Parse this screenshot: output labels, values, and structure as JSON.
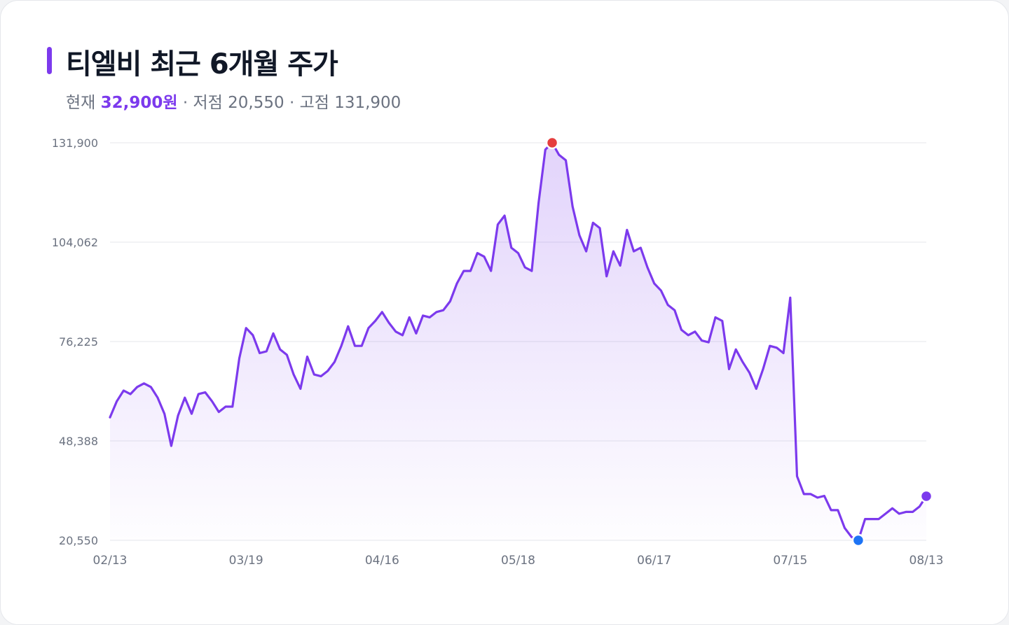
{
  "header": {
    "title": "티엘비 최근 6개월 주가",
    "current_label": "현재",
    "current_value": "32,900원",
    "sep": "·",
    "low_label": "저점",
    "low_value": "20,550",
    "high_label": "고점",
    "high_value": "131,900"
  },
  "colors": {
    "accent": "#7c3aed",
    "high_marker": "#e53e3e",
    "low_marker": "#1d74f5",
    "grid": "#e5e7eb",
    "tick_text": "#6b7280"
  },
  "chart_data": {
    "type": "area",
    "x_ticks": [
      "02/13",
      "03/19",
      "04/16",
      "05/18",
      "06/17",
      "07/15",
      "08/13"
    ],
    "y_ticks": [
      "131,900",
      "104,062",
      "76,225",
      "48,388",
      "20,550"
    ],
    "ylim": [
      20550,
      131900
    ],
    "grid": true,
    "values": [
      55000,
      59500,
      62500,
      61500,
      63500,
      64500,
      63500,
      60500,
      56000,
      47000,
      55500,
      60500,
      56000,
      61500,
      62000,
      59500,
      56500,
      58000,
      58000,
      71500,
      80000,
      78000,
      73000,
      73500,
      78500,
      74000,
      72500,
      67000,
      63000,
      72000,
      67000,
      66500,
      68000,
      70500,
      75000,
      80500,
      75000,
      75000,
      80000,
      82000,
      84500,
      81500,
      79000,
      78000,
      83000,
      78500,
      83500,
      83000,
      84500,
      85000,
      87500,
      92500,
      96000,
      96000,
      101000,
      100000,
      96000,
      109000,
      111500,
      102500,
      101000,
      97000,
      96000,
      115000,
      130000,
      131900,
      128500,
      127000,
      114000,
      106000,
      101500,
      109500,
      108000,
      94500,
      101500,
      97500,
      107500,
      101500,
      102500,
      97000,
      92500,
      90500,
      86500,
      85000,
      79500,
      78000,
      79000,
      76500,
      76000,
      83000,
      82000,
      68500,
      74000,
      70500,
      67500,
      63000,
      68500,
      75000,
      74500,
      73000,
      88500,
      38500,
      33500,
      33500,
      32500,
      33000,
      29000,
      29000,
      24000,
      21500,
      20550,
      26500,
      26500,
      26500,
      28000,
      29500,
      28000,
      28500,
      28500,
      30000,
      32900
    ],
    "high": {
      "value": 131900,
      "date": "05/24"
    },
    "low": {
      "value": 20550,
      "date": "08/01"
    },
    "last": {
      "value": 32900,
      "date": "08/13"
    }
  }
}
